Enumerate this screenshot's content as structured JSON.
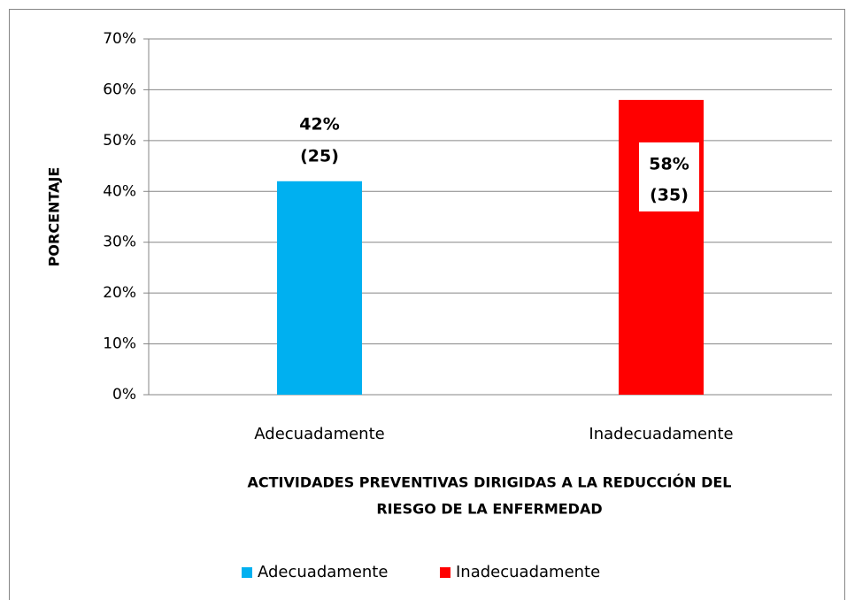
{
  "chart_data": {
    "type": "bar",
    "ylabel": "PORCENTAJE",
    "xlabel": [
      "ACTIVIDADES PREVENTIVAS DIRIGIDAS A LA REDUCCIÓN DEL",
      "RIESGO DE LA ENFERMEDAD"
    ],
    "categories": [
      "Adecuadamente",
      "Inadecuadamente"
    ],
    "values": [
      42,
      58
    ],
    "value_labels": [
      "42%",
      "58%"
    ],
    "count_labels": [
      "(25)",
      "(35)"
    ],
    "label_positions": [
      "outside_end",
      "inside_end"
    ],
    "colors": [
      "#00b0f0",
      "#ff0000"
    ],
    "ylim": [
      0,
      70
    ],
    "yticks": [
      {
        "value": 0,
        "label": "0%"
      },
      {
        "value": 10,
        "label": "10%"
      },
      {
        "value": 20,
        "label": "20%"
      },
      {
        "value": 30,
        "label": "30%"
      },
      {
        "value": 40,
        "label": "40%"
      },
      {
        "value": 50,
        "label": "50%"
      },
      {
        "value": 60,
        "label": "60%"
      },
      {
        "value": 70,
        "label": "70%"
      }
    ],
    "grid": true,
    "legend": "bottom"
  }
}
